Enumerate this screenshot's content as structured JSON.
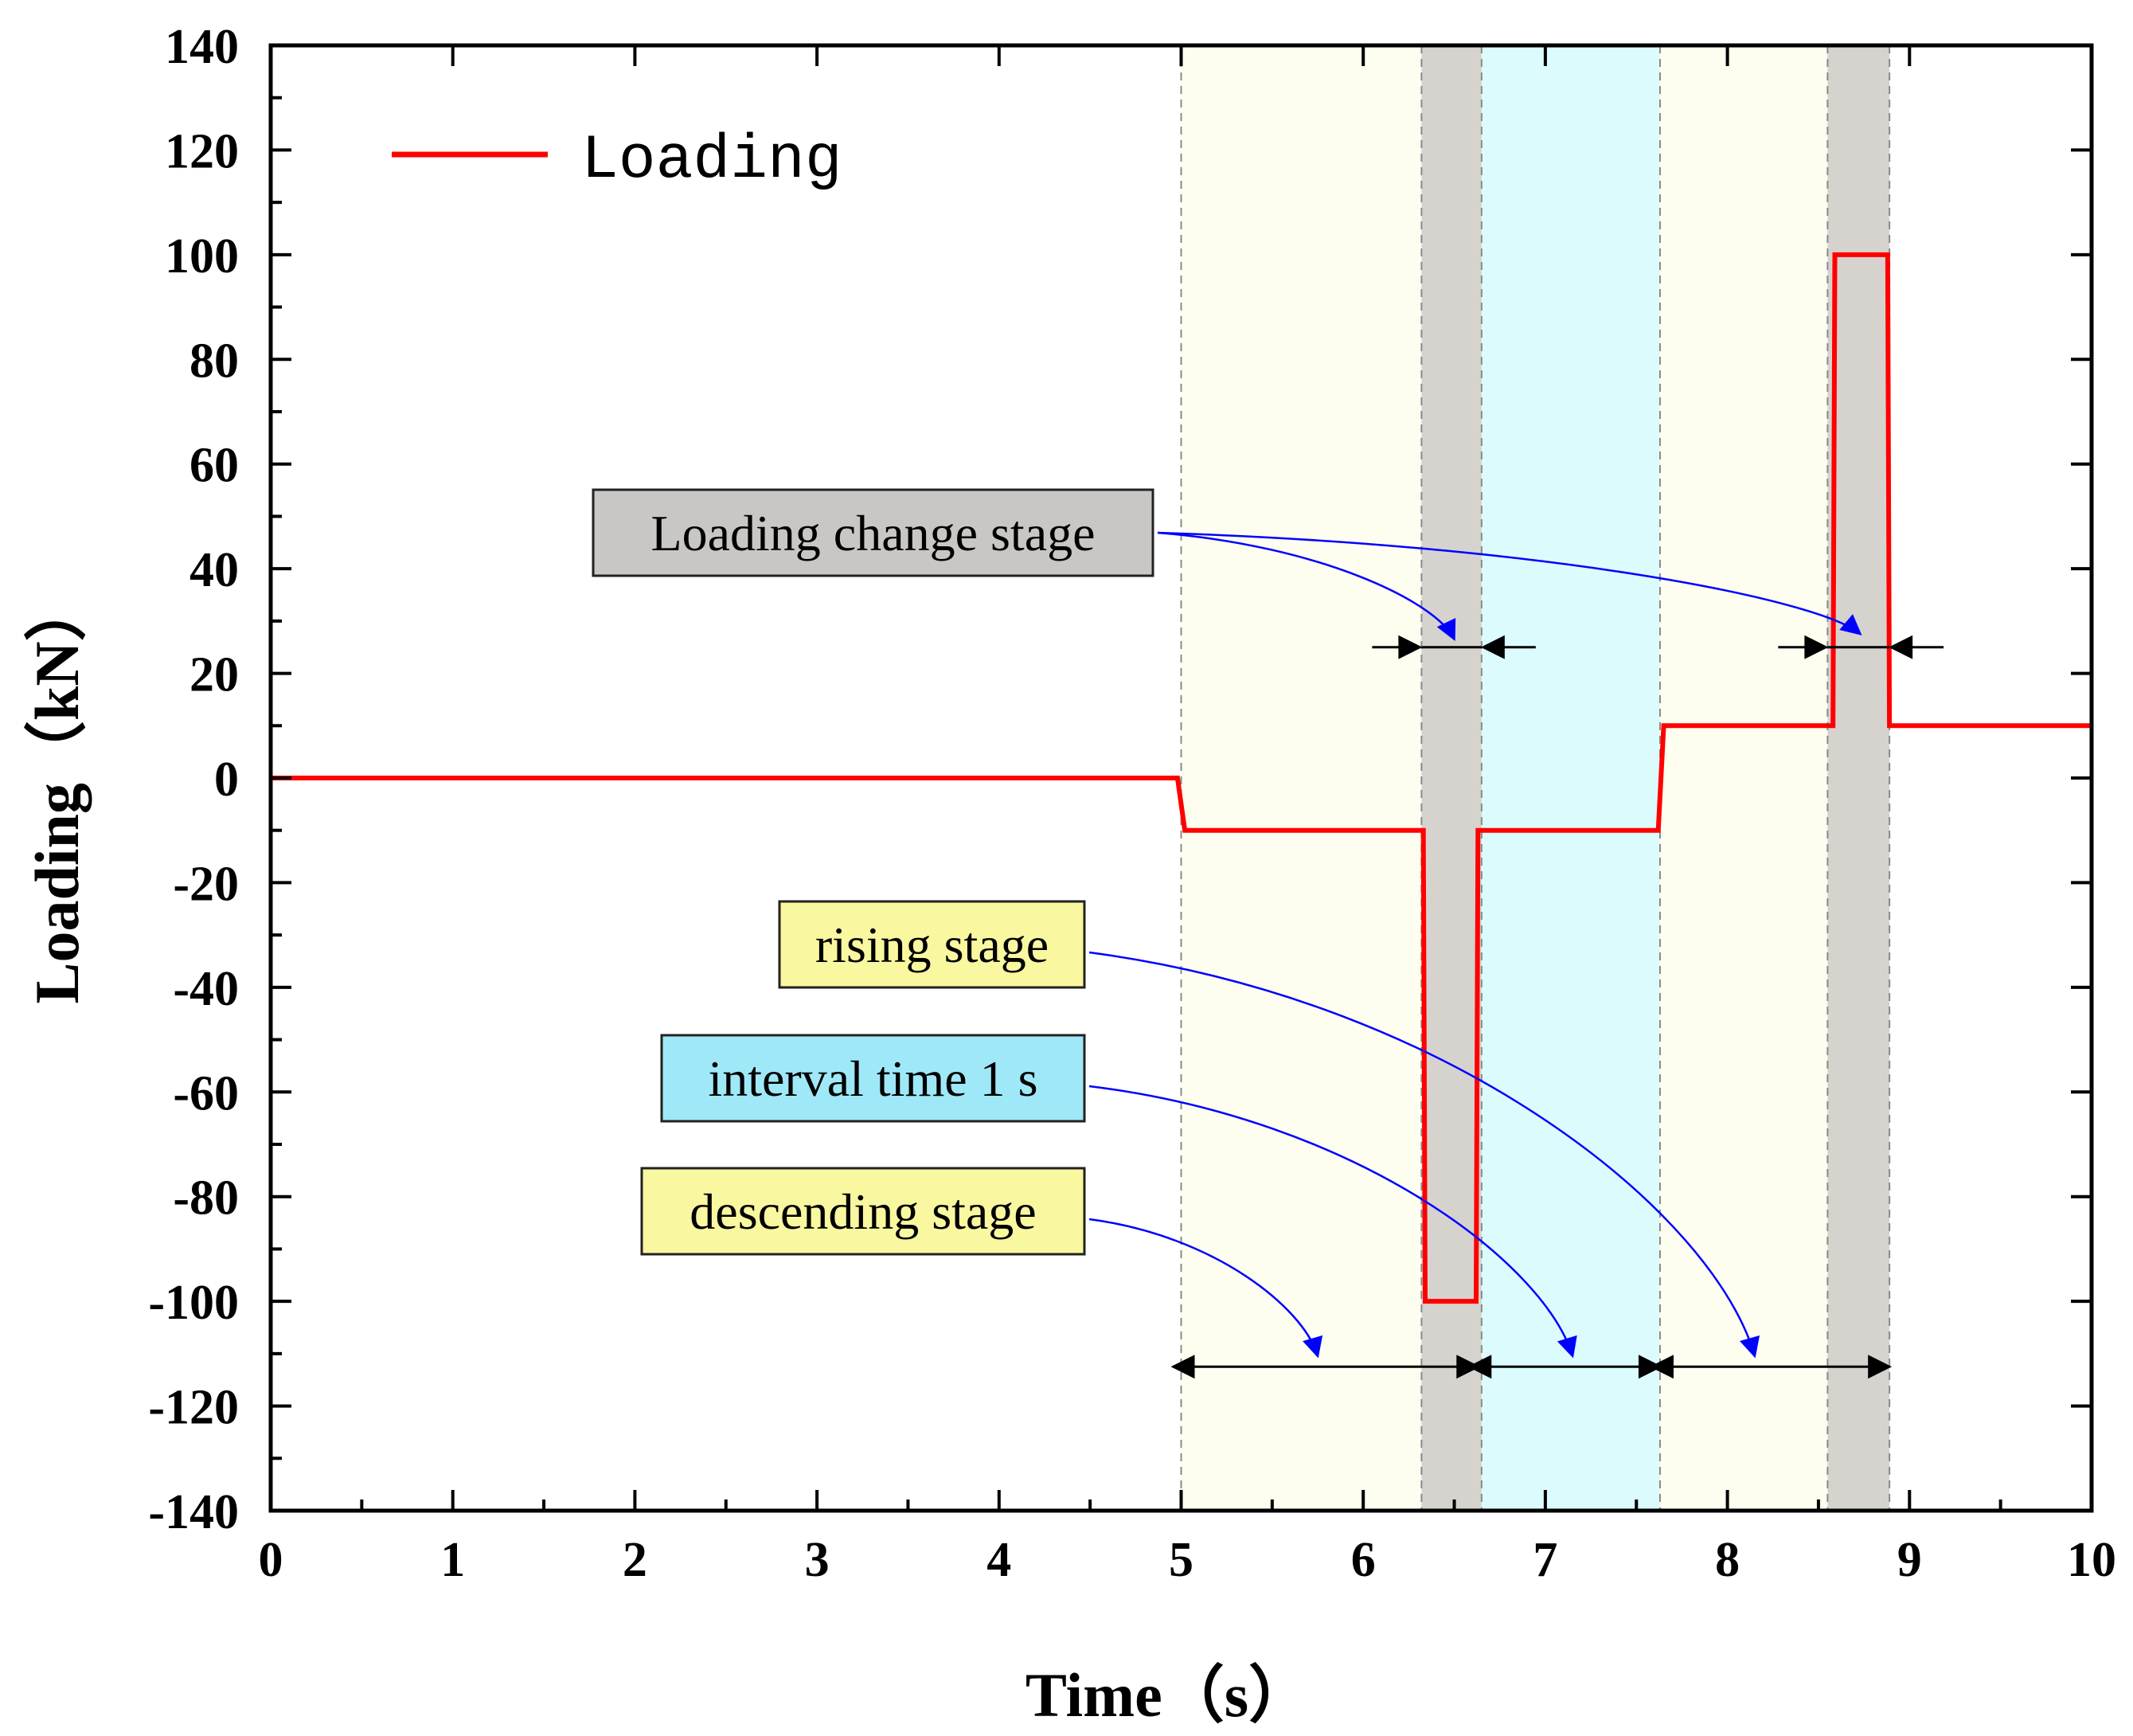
{
  "chart_data": {
    "type": "line",
    "title": "",
    "xlabel": "Time（s）",
    "ylabel": "Loading（kN）",
    "xlim": [
      0,
      10
    ],
    "ylim": [
      -140,
      140
    ],
    "xticks": [
      0,
      1,
      2,
      3,
      4,
      5,
      6,
      7,
      8,
      9,
      10
    ],
    "yticks": [
      140,
      120,
      100,
      80,
      60,
      40,
      20,
      0,
      -20,
      -40,
      -60,
      -80,
      -100,
      -120,
      -140
    ],
    "legend": {
      "position": "top-left",
      "entries": [
        "Loading"
      ]
    },
    "colors": {
      "line": "#ff0000",
      "descending": "#fdfdf0",
      "change": "#d6d3cf",
      "interval": "#dcfbfd",
      "rising": "#fdfdf0",
      "callout_arrow": "#0000ff",
      "box_yellow": "#f9f79f",
      "box_blue": "#9fe8f8",
      "box_gray": "#c9c7c4"
    },
    "series": [
      {
        "name": "Loading",
        "x": [
          0,
          4.98,
          5.02,
          6.33,
          6.34,
          6.62,
          6.63,
          7.62,
          7.65,
          8.58,
          8.59,
          8.88,
          8.89,
          10
        ],
        "y": [
          0,
          0,
          -10,
          -10,
          -100,
          -100,
          -10,
          -10,
          10,
          10,
          100,
          100,
          10,
          10
        ]
      }
    ],
    "regions": [
      {
        "name": "descending",
        "x0": 5.0,
        "x1": 6.32,
        "color": "descending"
      },
      {
        "name": "change-1",
        "x0": 6.32,
        "x1": 6.65,
        "color": "change"
      },
      {
        "name": "interval",
        "x0": 6.65,
        "x1": 7.63,
        "color": "interval"
      },
      {
        "name": "rising",
        "x0": 7.63,
        "x1": 8.55,
        "color": "rising"
      },
      {
        "name": "change-2",
        "x0": 8.55,
        "x1": 8.89,
        "color": "change"
      }
    ],
    "dashed_lines": [
      5.0,
      6.32,
      6.65,
      7.63,
      8.55,
      8.89
    ],
    "span_arrows": [
      {
        "y": -112.5,
        "x0": 5.0,
        "x1": 6.63
      },
      {
        "y": -112.5,
        "x0": 6.63,
        "x1": 7.63
      },
      {
        "y": -112.5,
        "x0": 7.63,
        "x1": 8.89
      }
    ],
    "change_arrows": [
      {
        "y": 25,
        "x0": 6.32,
        "x1": 6.65
      },
      {
        "y": 25,
        "x0": 8.55,
        "x1": 8.89
      }
    ],
    "annotations": [
      {
        "text": "Loading change stage",
        "style": "box_gray",
        "targets": [
          [
            6.5,
            25
          ],
          [
            8.73,
            26
          ]
        ]
      },
      {
        "text": "rising stage",
        "style": "box_yellow",
        "targets": [
          [
            8.15,
            -112
          ]
        ]
      },
      {
        "text": "interval time 1 s",
        "style": "box_blue",
        "targets": [
          [
            7.15,
            -112
          ]
        ]
      },
      {
        "text": "descending stage",
        "style": "box_yellow",
        "targets": [
          [
            5.75,
            -112
          ]
        ]
      }
    ]
  }
}
